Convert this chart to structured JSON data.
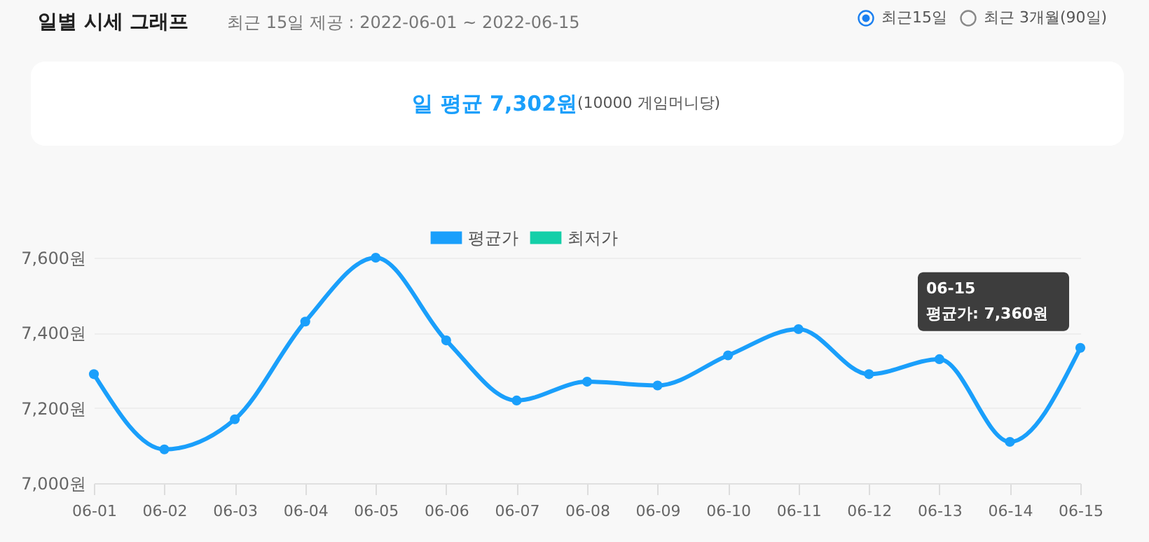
{
  "chart_data": {
    "type": "line",
    "title": "일별 시세 그래프",
    "subtitle": "최근 15일 제공 : 2022-06-01 ~ 2022-06-15",
    "annotations": [
      "최근15일",
      "최근 3개월(90일)",
      "일 평균 7,302원",
      "(10000 게임머니당)",
      "06-15",
      {
        "text": "평균가: 7,360원",
        "x": "06-15",
        "y": 7360
      }
    ],
    "categories": [
      "06-01",
      "06-02",
      "06-03",
      "06-04",
      "06-05",
      "06-06",
      "06-07",
      "06-08",
      "06-09",
      "06-10",
      "06-11",
      "06-12",
      "06-13",
      "06-14",
      "06-15"
    ],
    "series": [
      {
        "name": "평균가",
        "color": "#1a9ffb",
        "values": [
          7290,
          7090,
          7170,
          7430,
          7600,
          7380,
          7220,
          7270,
          7260,
          7340,
          7410,
          7290,
          7330,
          7110,
          7360
        ]
      },
      {
        "name": "최저가",
        "color": "#14cfa8",
        "values": [
          null,
          null,
          null,
          null,
          null,
          null,
          null,
          null,
          null,
          null,
          null,
          null,
          null,
          null,
          null
        ]
      }
    ],
    "ylim": [
      7000,
      7600
    ],
    "yticks": [
      {
        "value": 7000,
        "label": "7,000원"
      },
      {
        "value": 7200,
        "label": "7,200원"
      },
      {
        "value": 7400,
        "label": "7,400원"
      },
      {
        "value": 7600,
        "label": "7,600원"
      }
    ],
    "grid": "y",
    "legend": "top",
    "marker": "circle",
    "line_style": "solid"
  }
}
